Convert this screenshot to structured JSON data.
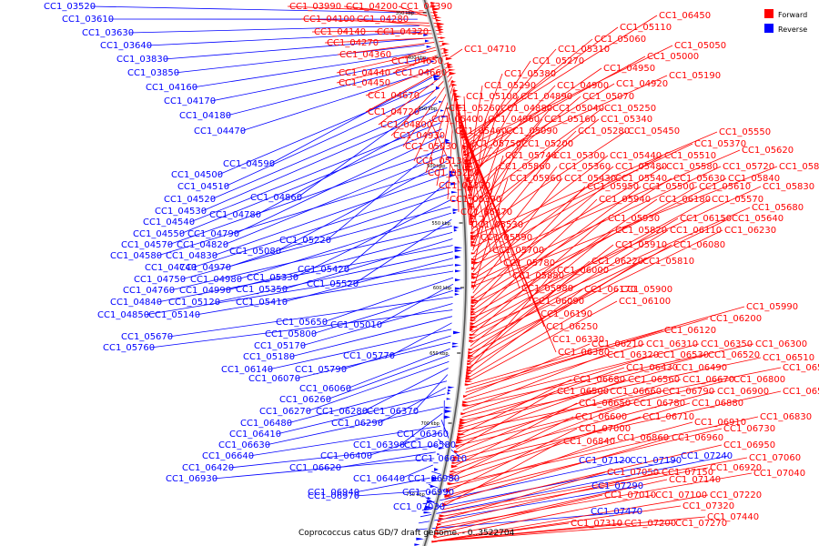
{
  "caption": "Coprococcus catus GD/7 draft genome. - 0..3522704",
  "legend": {
    "forward_label": "Forward",
    "reverse_label": "Reverse",
    "forward_color": "#ff0000",
    "reverse_color": "#0000ff"
  },
  "ticks": [
    "350 kbp",
    "400 kbp",
    "450 kbp",
    "500 kbp",
    "550 kbp",
    "600 kbp",
    "650 kbp",
    "700 kbp",
    "750 kbp"
  ],
  "reverse_labels": [
    "CC1_03520",
    "CC1_03610",
    "CC1_03630",
    "CC1_03640",
    "CC1_03830",
    "CC1_03850",
    "CC1_04160",
    "CC1_04170",
    "CC1_04180",
    "CC1_04470",
    "CC1_04590",
    "CC1_04500",
    "CC1_04510",
    "CC1_04860",
    "CC1_04520",
    "CC1_04530",
    "CC1_04780",
    "CC1_04540",
    "CC1_04550",
    "CC1_04790",
    "CC1_05220",
    "CC1_04570",
    "CC1_04820",
    "CC1_05080",
    "CC1_04580",
    "CC1_04830",
    "CC1_05420",
    "CC1_04740",
    "CC1_04970",
    "CC1_05330",
    "CC1_04750",
    "CC1_04980",
    "CC1_05520",
    "CC1_04760",
    "CC1_04990",
    "CC1_05350",
    "CC1_04840",
    "CC1_05120",
    "CC1_05410",
    "CC1_04850",
    "CC1_05140",
    "CC1_05650",
    "CC1_05010",
    "CC1_05800",
    "CC1_05670",
    "CC1_05170",
    "CC1_05760",
    "CC1_05180",
    "CC1_05770",
    "CC1_06140",
    "CC1_05790",
    "CC1_06070",
    "CC1_06060",
    "CC1_06260",
    "CC1_06270",
    "CC1_06280",
    "CC1_06370",
    "CC1_06480",
    "CC1_06290",
    "CC1_06410",
    "CC1_06360",
    "CC1_06630",
    "CC1_06390",
    "CC1_06580",
    "CC1_06640",
    "CC1_06400",
    "CC1_06610",
    "CC1_06420",
    "CC1_06620",
    "CC1_06930",
    "CC1_06440",
    "CC1_06980",
    "CC1_06940",
    "CC1_06990",
    "CC1_06970",
    "CC1_07030",
    "CC1_07120",
    "CC1_07190",
    "CC1_07240",
    "CC1_07290",
    "CC1_07470"
  ],
  "forward_labels": [
    "CC1_03990",
    "CC1_04200",
    "CC1_04390",
    "CC1_04100",
    "CC1_04280",
    "CC1_04140",
    "CC1_04320",
    "CC1_04270",
    "CC1_04360",
    "CC1_04650",
    "CC1_04440",
    "CC1_04660",
    "CC1_04450",
    "CC1_04710",
    "CC1_04670",
    "CC1_04720",
    "CC1_04800",
    "CC1_04930",
    "CC1_05030",
    "CC1_05130",
    "CC1_05210",
    "CC1_05320",
    "CC1_05390",
    "CC1_05470",
    "CC1_05530",
    "CC1_05590",
    "CC1_05700",
    "CC1_05780",
    "CC1_05880",
    "CC1_05980",
    "CC1_06090",
    "CC1_06190",
    "CC1_06250",
    "CC1_06330",
    "CC1_06380",
    "CC1_06450",
    "CC1_05110",
    "CC1_05060",
    "CC1_05050",
    "CC1_05310",
    "CC1_05000",
    "CC1_05270",
    "CC1_04950",
    "CC1_05190",
    "CC1_05380",
    "CC1_04920",
    "CC1_05290",
    "CC1_04900",
    "CC1_05100",
    "CC1_04890",
    "CC1_05070",
    "CC1_05260",
    "CC1_04880",
    "CC1_05040",
    "CC1_05250",
    "CC1_05400",
    "CC1_04960",
    "CC1_05160",
    "CC1_05340",
    "CC1_05460",
    "CC1_05090",
    "CC1_05280",
    "CC1_05450",
    "CC1_05550",
    "CC1_05750",
    "CC1_05200",
    "CC1_05370",
    "CC1_05740",
    "CC1_05300",
    "CC1_05440",
    "CC1_05510",
    "CC1_05620",
    "CC1_05860",
    "CC1_05360",
    "CC1_05480",
    "CC1_05580",
    "CC1_05720",
    "CC1_05850",
    "CC1_05960",
    "CC1_05430",
    "CC1_05540",
    "CC1_05630",
    "CC1_05840",
    "CC1_05950",
    "CC1_05500",
    "CC1_05610",
    "CC1_05830",
    "CC1_05940",
    "CC1_06180",
    "CC1_05570",
    "CC1_05680",
    "CC1_05930",
    "CC1_06150",
    "CC1_05640",
    "CC1_05820",
    "CC1_06110",
    "CC1_06230",
    "CC1_05910",
    "CC1_06080",
    "CC1_06220",
    "CC1_05810",
    "CC1_06000",
    "CC1_06170",
    "CC1_05900",
    "CC1_06100",
    "CC1_05990",
    "CC1_06200",
    "CC1_06120",
    "CC1_06210",
    "CC1_06310",
    "CC1_06350",
    "CC1_06300",
    "CC1_06320",
    "CC1_06530",
    "CC1_06520",
    "CC1_06510",
    "CC1_06430",
    "CC1_06490",
    "CC1_06590",
    "CC1_06680",
    "CC1_06560",
    "CC1_06670",
    "CC1_06800",
    "CC1_06500",
    "CC1_06660",
    "CC1_06790",
    "CC1_06900",
    "CC1_06550",
    "CC1_06650",
    "CC1_06780",
    "CC1_06880",
    "CC1_06600",
    "CC1_06710",
    "CC1_06830",
    "CC1_06910",
    "CC1_07000",
    "CC1_06730",
    "CC1_06860",
    "CC1_06960",
    "CC1_06840",
    "CC1_06950",
    "CC1_07060",
    "CC1_06920",
    "CC1_07050",
    "CC1_07150",
    "CC1_07040",
    "CC1_07140",
    "CC1_07010",
    "CC1_07100",
    "CC1_07220",
    "CC1_07320",
    "CC1_07310",
    "CC1_07200",
    "CC1_07270",
    "CC1_07440",
    "CC1_07350",
    "CC1_07430",
    "CC1_07420",
    "CC1_07460",
    "CC1_07480",
    "CC1_07490",
    "CC1_07510",
    "CC1_07540",
    "CC1_07550"
  ]
}
